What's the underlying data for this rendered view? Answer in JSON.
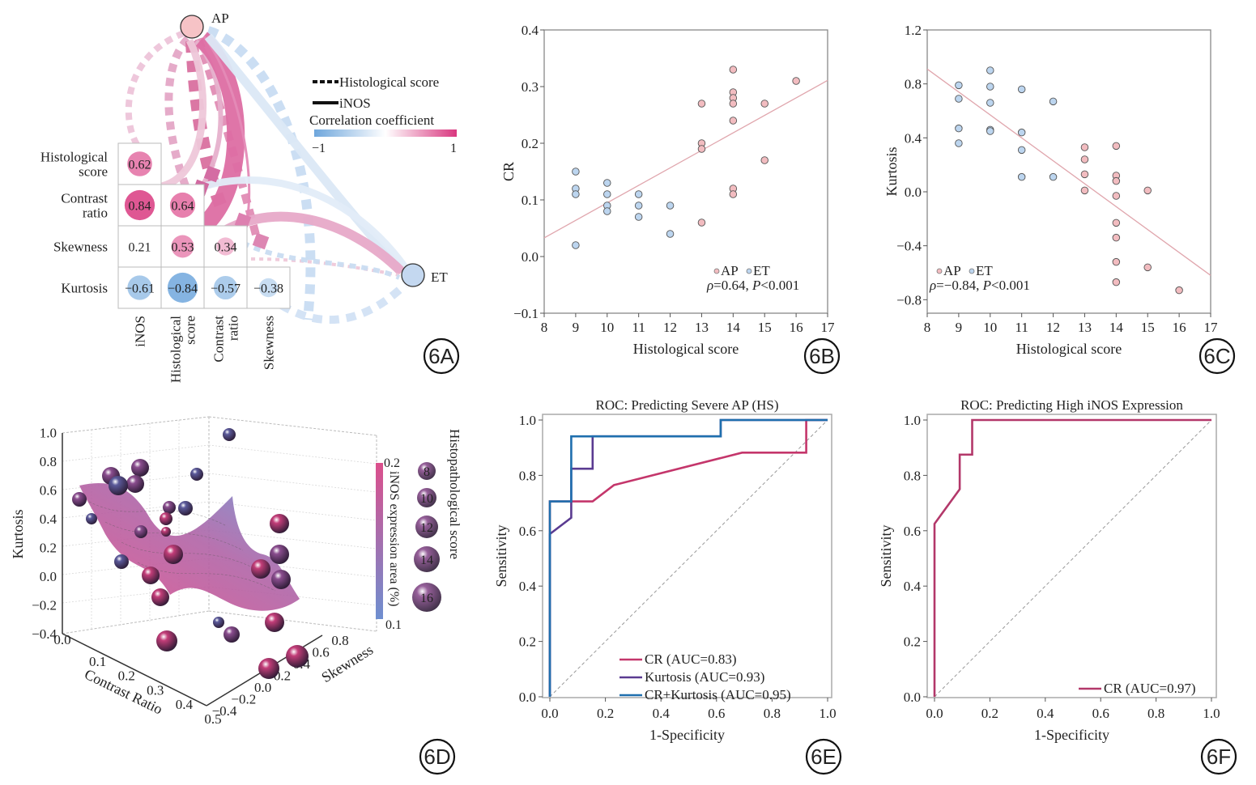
{
  "figure": {
    "panels": [
      "6A",
      "6B",
      "6C",
      "6D",
      "6E",
      "6F"
    ]
  },
  "chart_data": [
    {
      "id": "6A",
      "type": "heatmap",
      "title": "",
      "badge": "6A",
      "row_labels": [
        [
          "Histological",
          "score"
        ],
        [
          "Contrast",
          "ratio"
        ],
        [
          "Skewness"
        ],
        [
          "Kurtosis"
        ]
      ],
      "col_labels": [
        [
          "iNOS"
        ],
        [
          "Histological",
          "score"
        ],
        [
          "Contrast",
          "ratio"
        ],
        [
          "Skewness"
        ]
      ],
      "matrix": [
        [
          0.62,
          null,
          null,
          null
        ],
        [
          0.84,
          0.64,
          null,
          null
        ],
        [
          0.21,
          0.53,
          0.34,
          null
        ],
        [
          -0.61,
          -0.84,
          -0.57,
          -0.38
        ]
      ],
      "matrix_labels": [
        [
          "0.62",
          "",
          "",
          ""
        ],
        [
          "0.84",
          "0.64",
          "",
          ""
        ],
        [
          "0.21",
          "0.53",
          "0.34",
          ""
        ],
        [
          "−0.61",
          "−0.84",
          "−0.57",
          "−0.38"
        ]
      ],
      "nodes": [
        {
          "name": "AP",
          "color": "#f6c3c6"
        },
        {
          "name": "ET",
          "color": "#c4d8f0"
        }
      ],
      "legend": {
        "dotted_label": "Histological score",
        "solid_label": "iNOS",
        "colorbar_title": "Correlation coefficient",
        "colorbar_min": "−1",
        "colorbar_max": "1",
        "colorbar_range": [
          -1,
          1
        ],
        "colors": {
          "negative": "#6ea6dc",
          "neutral": "#ffffff",
          "positive": "#d9377f"
        }
      }
    },
    {
      "id": "6B",
      "type": "scatter",
      "badge": "6B",
      "xlabel": "Histological score",
      "ylabel": "CR",
      "xlim": [
        8,
        17
      ],
      "ylim": [
        -0.1,
        0.4
      ],
      "xticks": [
        8,
        9,
        10,
        11,
        12,
        13,
        14,
        15,
        16,
        17
      ],
      "yticks": [
        -0.1,
        0.0,
        0.1,
        0.2,
        0.3,
        0.4
      ],
      "ytick_labels": [
        "−0.1",
        "0.0",
        "0.1",
        "0.2",
        "0.3",
        "0.4"
      ],
      "series": [
        {
          "name": "ET",
          "color": "#bcd5ef",
          "x": [
            9,
            9,
            9,
            9,
            10,
            10,
            10,
            10,
            11,
            11,
            11,
            12,
            12
          ],
          "y": [
            0.15,
            0.12,
            0.11,
            0.02,
            0.13,
            0.11,
            0.09,
            0.08,
            0.11,
            0.09,
            0.07,
            0.09,
            0.04
          ]
        },
        {
          "name": "AP",
          "color": "#f2bcc0",
          "x": [
            13,
            13,
            13,
            13,
            14,
            14,
            14,
            14,
            14,
            14,
            14,
            15,
            15,
            16
          ],
          "y": [
            0.27,
            0.2,
            0.19,
            0.06,
            0.33,
            0.29,
            0.28,
            0.27,
            0.24,
            0.12,
            0.11,
            0.27,
            0.17,
            0.31
          ]
        }
      ],
      "fit_line": {
        "x": [
          8,
          17
        ],
        "y": [
          0.033,
          0.311
        ],
        "color": "#e0a6ad"
      },
      "legend_labels": [
        "AP",
        "ET"
      ],
      "stat_rho": "ρ=0.64, ",
      "stat_p_label": "P",
      "stat_p_value": "<0.001"
    },
    {
      "id": "6C",
      "type": "scatter",
      "badge": "6C",
      "xlabel": "Histological score",
      "ylabel": "Kurtosis",
      "xlim": [
        8,
        17
      ],
      "ylim": [
        -0.9,
        1.2
      ],
      "xticks": [
        8,
        9,
        10,
        11,
        12,
        13,
        14,
        15,
        16,
        17
      ],
      "yticks": [
        -0.8,
        -0.4,
        0.0,
        0.4,
        0.8,
        1.2
      ],
      "ytick_labels": [
        "−0.8",
        "−0.4",
        "0.0",
        "0.4",
        "0.8",
        "1.2"
      ],
      "series": [
        {
          "name": "ET",
          "color": "#bcd5ef",
          "x": [
            9,
            9,
            9,
            9,
            10,
            10,
            10,
            10,
            10,
            11,
            11,
            11,
            11,
            12,
            12
          ],
          "y": [
            0.79,
            0.69,
            0.47,
            0.36,
            0.9,
            0.78,
            0.66,
            0.46,
            0.45,
            0.76,
            0.44,
            0.31,
            0.11,
            0.67,
            0.11
          ]
        },
        {
          "name": "AP",
          "color": "#f2bcc0",
          "x": [
            13,
            13,
            13,
            13,
            14,
            14,
            14,
            14,
            14,
            14,
            14,
            14,
            15,
            15,
            16
          ],
          "y": [
            0.33,
            0.24,
            0.13,
            0.01,
            0.34,
            0.12,
            0.08,
            -0.03,
            -0.23,
            -0.34,
            -0.52,
            -0.67,
            0.01,
            -0.56,
            -0.73
          ]
        }
      ],
      "fit_line": {
        "x": [
          8,
          17
        ],
        "y": [
          0.91,
          -0.62
        ],
        "color": "#e0a6ad"
      },
      "legend_labels": [
        "AP",
        "ET"
      ],
      "stat_rho": "ρ=−0.84, ",
      "stat_p_label": "P",
      "stat_p_value": "<0.001"
    },
    {
      "id": "6D",
      "type": "scatter",
      "subtype": "3d-bubble-surface",
      "badge": "6D",
      "xlabel": "Contrast Ratio",
      "ylabel": "Skewness",
      "zlabel": "Kurtosis",
      "xlim": [
        0.0,
        0.5
      ],
      "ylim": [
        -0.4,
        0.8
      ],
      "zlim": [
        -0.4,
        1.0
      ],
      "xtick_labels": [
        "0.0",
        "0.1",
        "0.2",
        "0.3",
        "0.4",
        "0.5"
      ],
      "ytick_labels": [
        "−0.4",
        "−0.2",
        "0.0",
        "0.2",
        "0.4",
        "0.6",
        "0.8"
      ],
      "ztick_labels": [
        "−0.4",
        "−0.2",
        "0.0",
        "0.2",
        "0.4",
        "0.6",
        "0.8",
        "1.0"
      ],
      "colorbar": {
        "title": "iNOS expression area (%)",
        "min_label": "0.1",
        "max_label": "0.2",
        "range": [
          0.1,
          0.2
        ],
        "low_color": "#6e8fd0",
        "high_color": "#dc4f8c"
      },
      "size_legend": {
        "title": "Histopathological score",
        "values": [
          "8",
          "10",
          "12",
          "14",
          "16"
        ]
      }
    },
    {
      "id": "6E",
      "type": "line",
      "badge": "6E",
      "title": "ROC: Predicting Severe AP (HS)",
      "xlabel": "1-Specificity",
      "ylabel": "Sensitivity",
      "xlim": [
        0,
        1
      ],
      "ylim": [
        0,
        1
      ],
      "xtick_labels": [
        "0.0",
        "0.2",
        "0.4",
        "0.6",
        "0.8",
        "1.0"
      ],
      "ytick_labels": [
        "0.0",
        "0.2",
        "0.4",
        "0.6",
        "0.8",
        "1.0"
      ],
      "series": [
        {
          "name": "CR (AUC=0.83)",
          "color": "#c4366b",
          "x": [
            0,
            0,
            0.077,
            0.154,
            0.231,
            0.692,
            0.923,
            0.923,
            1
          ],
          "y": [
            0,
            0.706,
            0.706,
            0.706,
            0.765,
            0.882,
            0.882,
            1.0,
            1.0
          ]
        },
        {
          "name": "Kurtosis (AUC=0.93)",
          "color": "#5a3b91",
          "x": [
            0,
            0,
            0.077,
            0.077,
            0.154,
            0.154,
            0.615,
            0.615,
            1
          ],
          "y": [
            0,
            0.588,
            0.647,
            0.824,
            0.824,
            0.941,
            0.941,
            1.0,
            1.0
          ]
        },
        {
          "name": "CR+Kurtosis (AUC=0.95)",
          "color": "#1f6fae",
          "x": [
            0,
            0,
            0.077,
            0.077,
            0.615,
            0.615,
            1
          ],
          "y": [
            0,
            0.706,
            0.706,
            0.941,
            0.941,
            1.0,
            1.0
          ]
        }
      ],
      "legend_position": "bottom-right"
    },
    {
      "id": "6F",
      "type": "line",
      "badge": "6F",
      "title": "ROC: Predicting High iNOS Expression",
      "xlabel": "1-Specificity",
      "ylabel": "Sensitivity",
      "xlim": [
        0,
        1
      ],
      "ylim": [
        0,
        1
      ],
      "xtick_labels": [
        "0.0",
        "0.2",
        "0.4",
        "0.6",
        "0.8",
        "1.0"
      ],
      "ytick_labels": [
        "0.0",
        "0.2",
        "0.4",
        "0.6",
        "0.8",
        "1.0"
      ],
      "series": [
        {
          "name": "CR (AUC=0.97)",
          "color": "#b3386a",
          "x": [
            0,
            0,
            0.091,
            0.091,
            0.136,
            0.136,
            1
          ],
          "y": [
            0,
            0.625,
            0.75,
            0.875,
            0.875,
            1.0,
            1.0
          ]
        }
      ],
      "legend_position": "bottom-right"
    }
  ]
}
